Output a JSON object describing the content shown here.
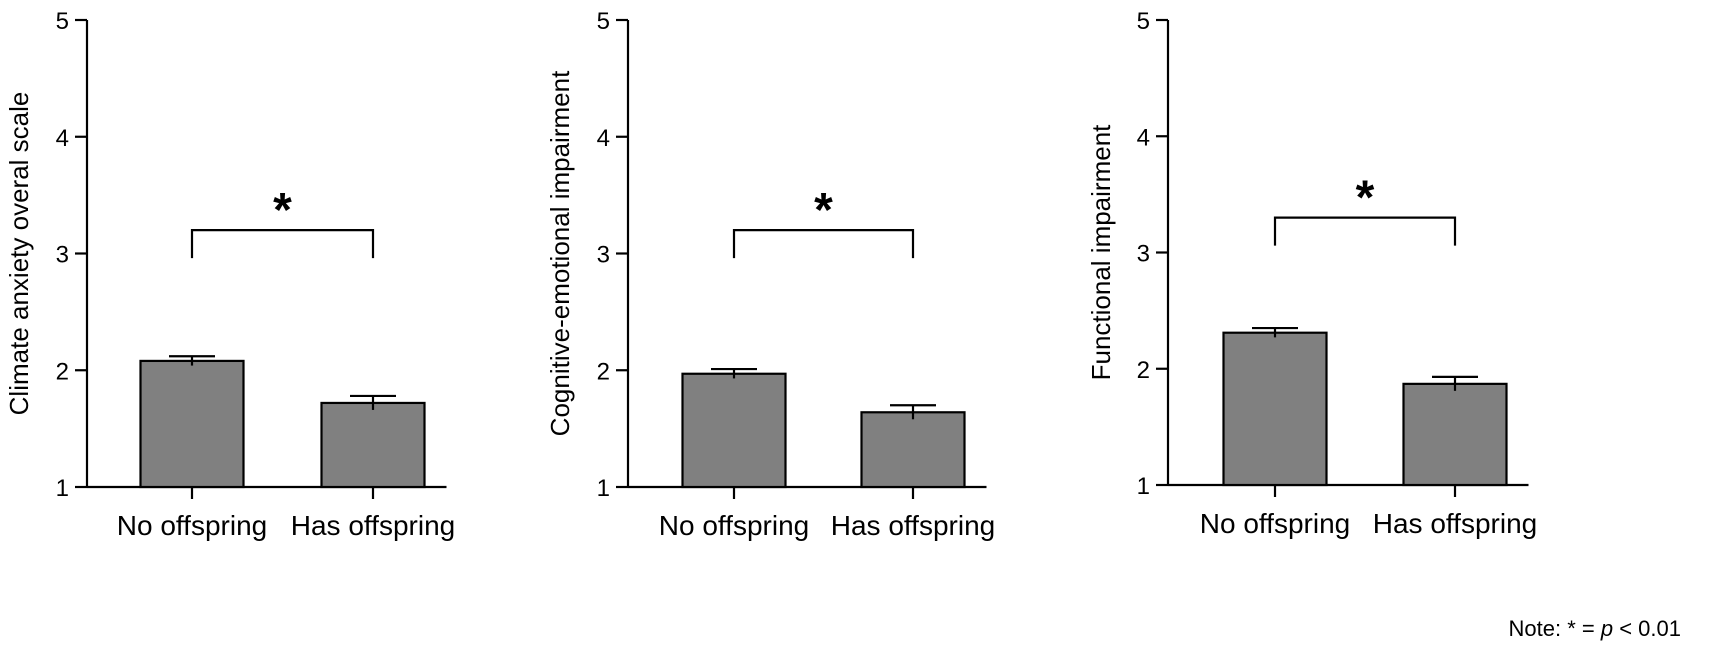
{
  "chart_data": [
    {
      "type": "bar",
      "categories": [
        "No offspring",
        "Has offspring"
      ],
      "values": [
        2.08,
        1.72
      ],
      "errors": [
        0.04,
        0.06
      ],
      "ylabel": "Climate anxiety overal scale",
      "ylim": [
        1,
        5
      ],
      "yticks": [
        1,
        2,
        3,
        4,
        5
      ],
      "significance": {
        "label": "*",
        "between": [
          0,
          1
        ],
        "level": 3.2
      },
      "grid": false
    },
    {
      "type": "bar",
      "categories": [
        "No offspring",
        "Has offspring"
      ],
      "values": [
        1.97,
        1.64
      ],
      "errors": [
        0.04,
        0.06
      ],
      "ylabel": "Cognitive-emotional impairment",
      "ylim": [
        1,
        5
      ],
      "yticks": [
        1,
        2,
        3,
        4,
        5
      ],
      "significance": {
        "label": "*",
        "between": [
          0,
          1
        ],
        "level": 3.2
      },
      "grid": false
    },
    {
      "type": "bar",
      "categories": [
        "No offspring",
        "Has offspring"
      ],
      "values": [
        2.31,
        1.87
      ],
      "errors": [
        0.04,
        0.06
      ],
      "ylabel": "Functional impairment",
      "ylim": [
        1,
        5
      ],
      "yticks": [
        1,
        2,
        3,
        4,
        5
      ],
      "significance": {
        "label": "*",
        "between": [
          0,
          1
        ],
        "level": 3.3
      },
      "grid": false
    }
  ],
  "note": {
    "prefix": "Note: * = ",
    "p_symbol": "p",
    "suffix": " < 0.01"
  },
  "colors": {
    "bar": "#808080",
    "axis": "#000000"
  }
}
